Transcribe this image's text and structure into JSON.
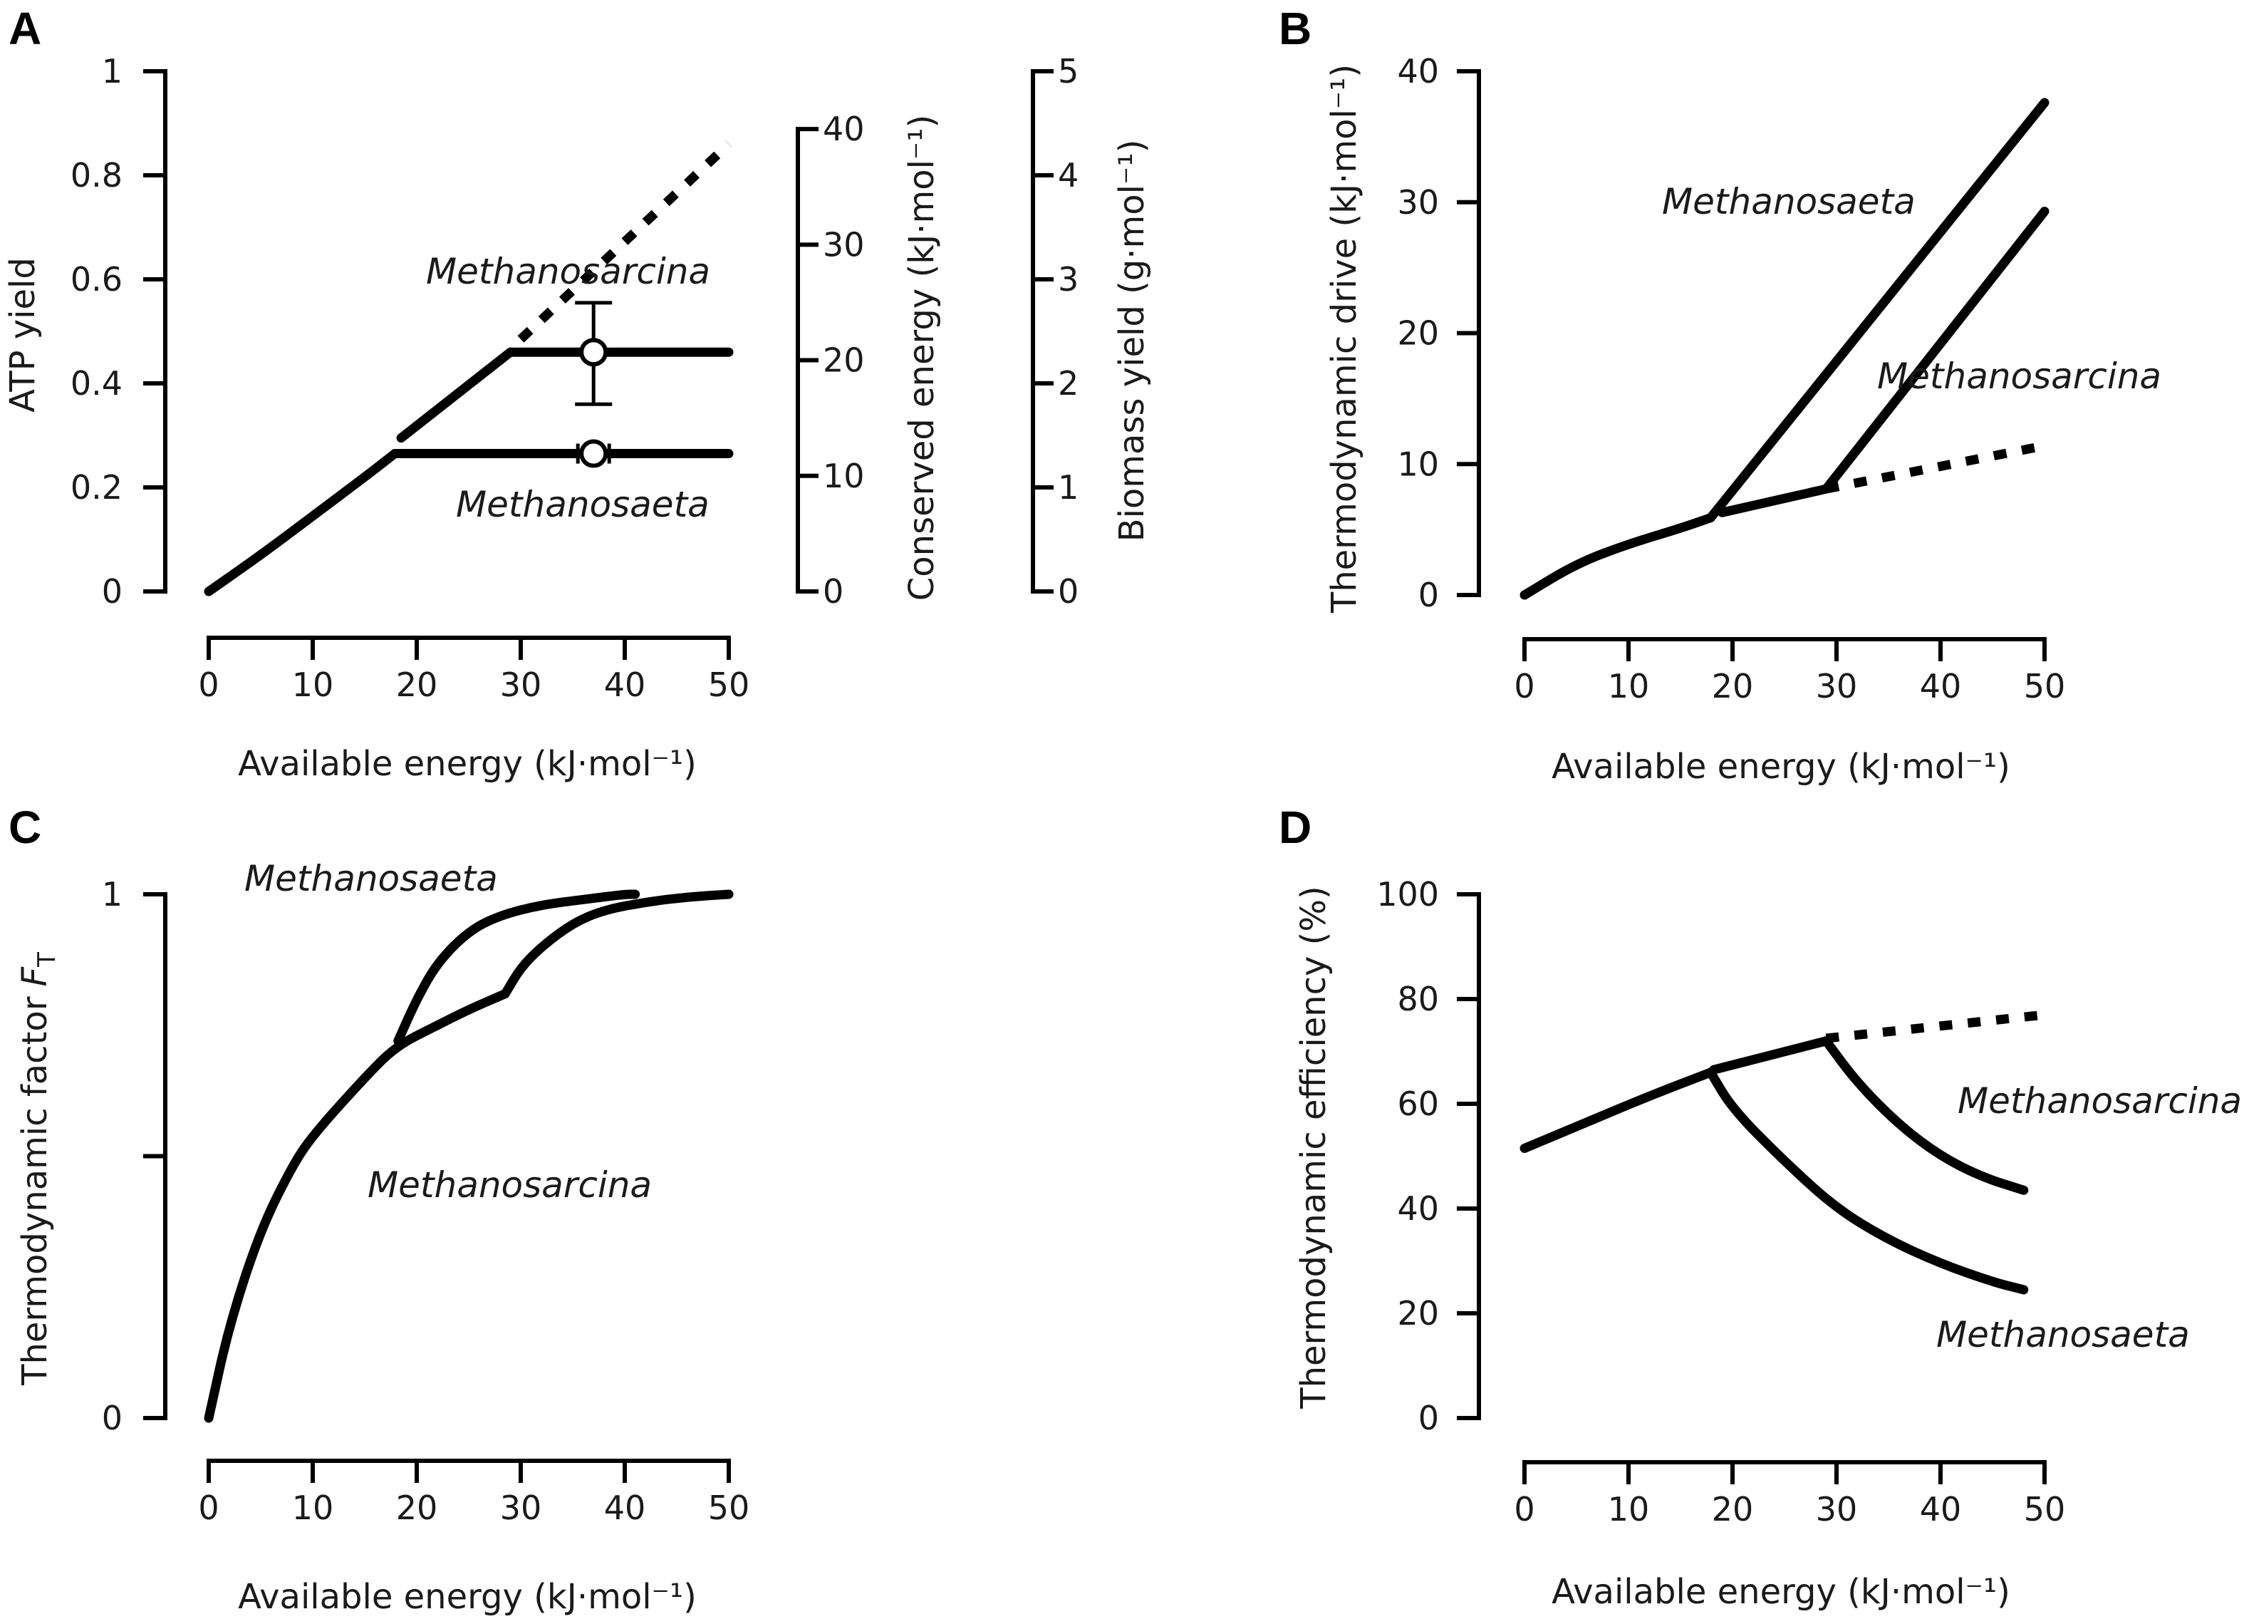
{
  "panels": {
    "A": {
      "letter": "A",
      "xlabel": "Available energy (kJ·mol⁻¹)",
      "ylabel": "ATP yield",
      "ylabel2": "Conserved energy (kJ·mol⁻¹)",
      "ylabel3": "Biomass yield (g·mol⁻¹)",
      "xticks": [
        "0",
        "10",
        "20",
        "30",
        "40",
        "50"
      ],
      "yticks": [
        "0",
        "0.2",
        "0.4",
        "0.6",
        "0.8",
        "1"
      ],
      "y2ticks": [
        "0",
        "10",
        "20",
        "30",
        "40"
      ],
      "y3ticks": [
        "0",
        "1",
        "2",
        "3",
        "4",
        "5"
      ],
      "label_sarcina": "Methanosarcina",
      "label_saeta": "Methanosaeta"
    },
    "B": {
      "letter": "B",
      "xlabel": "Available energy (kJ·mol⁻¹)",
      "ylabel": "Thermodynamic drive (kJ·mol⁻¹)",
      "xticks": [
        "0",
        "10",
        "20",
        "30",
        "40",
        "50"
      ],
      "yticks": [
        "0",
        "10",
        "20",
        "30",
        "40"
      ],
      "label_saeta": "Methanosaeta",
      "label_sarcina": "Methanosarcina"
    },
    "C": {
      "letter": "C",
      "xlabel": "Available energy (kJ·mol⁻¹)",
      "ylabel": "Thermodynamic factor",
      "ylabel_symbol": "F",
      "ylabel_subscript": "T",
      "xticks": [
        "0",
        "10",
        "20",
        "30",
        "40",
        "50"
      ],
      "yticks": [
        "0",
        "1"
      ],
      "label_saeta": "Methanosaeta",
      "label_sarcina": "Methanosarcina"
    },
    "D": {
      "letter": "D",
      "xlabel": "Available energy (kJ·mol⁻¹)",
      "ylabel": "Thermodynamic efficiency (%)",
      "xticks": [
        "0",
        "10",
        "20",
        "30",
        "40",
        "50"
      ],
      "yticks": [
        "0",
        "20",
        "40",
        "60",
        "80",
        "100"
      ],
      "label_sarcina": "Methanosarcina",
      "label_saeta": "Methanosaeta"
    }
  },
  "chart_data": [
    {
      "panel": "A",
      "type": "line",
      "xlabel": "Available energy (kJ·mol⁻¹)",
      "ylabel": "ATP yield",
      "xlim": [
        0,
        50
      ],
      "ylim": [
        0,
        1
      ],
      "secondary_axes": [
        {
          "label": "Conserved energy (kJ·mol⁻¹)",
          "range": [
            0,
            40
          ]
        },
        {
          "label": "Biomass yield (g·mol⁻¹)",
          "range": [
            0,
            5
          ]
        }
      ],
      "series": [
        {
          "name": "Shared (linear rise)",
          "style": "solid",
          "x": [
            0,
            5,
            10,
            15,
            17.9
          ],
          "y": [
            0,
            0.07,
            0.145,
            0.22,
            0.265
          ]
        },
        {
          "name": "Methanosaeta",
          "style": "solid",
          "x": [
            17.9,
            50
          ],
          "y": [
            0.265,
            0.265
          ]
        },
        {
          "name": "Methanosarcina rise",
          "style": "solid",
          "x": [
            18.5,
            29
          ],
          "y": [
            0.295,
            0.46
          ]
        },
        {
          "name": "Methanosarcina",
          "style": "solid",
          "x": [
            29,
            50
          ],
          "y": [
            0.46,
            0.46
          ]
        },
        {
          "name": "Methanosarcina (extrapolated)",
          "style": "dotted",
          "x": [
            30,
            50
          ],
          "y": [
            0.485,
            0.86
          ]
        }
      ],
      "points": [
        {
          "name": "Methanosarcina observed",
          "x": 37,
          "y": 0.46,
          "err_low": 0.36,
          "err_high": 0.555
        },
        {
          "name": "Methanosaeta observed",
          "x": 37,
          "y": 0.265,
          "err_low": 0.255,
          "err_high": 0.275
        }
      ]
    },
    {
      "panel": "B",
      "type": "line",
      "xlabel": "Available energy (kJ·mol⁻¹)",
      "ylabel": "Thermodynamic drive (kJ·mol⁻¹)",
      "xlim": [
        0,
        50
      ],
      "ylim": [
        0,
        40
      ],
      "series": [
        {
          "name": "Shared",
          "style": "solid",
          "x": [
            0,
            5,
            10,
            15,
            17.9
          ],
          "y": [
            0,
            2.4,
            3.9,
            5.1,
            5.9
          ]
        },
        {
          "name": "Methanosaeta",
          "style": "solid",
          "x": [
            17.9,
            50
          ],
          "y": [
            5.9,
            37.6
          ]
        },
        {
          "name": "Methanosarcina lower branch",
          "style": "solid",
          "x": [
            19,
            29
          ],
          "y": [
            6.3,
            8.1
          ]
        },
        {
          "name": "Methanosarcina",
          "style": "solid",
          "x": [
            29,
            50
          ],
          "y": [
            8.1,
            29.3
          ]
        },
        {
          "name": "Methanosarcina (extrapolated)",
          "style": "dotted",
          "x": [
            29,
            50
          ],
          "y": [
            8.1,
            11.4
          ]
        }
      ]
    },
    {
      "panel": "C",
      "type": "line",
      "xlabel": "Available energy (kJ·mol⁻¹)",
      "ylabel": "Thermodynamic factor F_T",
      "xlim": [
        0,
        50
      ],
      "ylim": [
        0,
        1
      ],
      "series": [
        {
          "name": "Shared",
          "style": "solid",
          "x": [
            0,
            2,
            5,
            8,
            10,
            15,
            18,
            22,
            25,
            28.5
          ],
          "y": [
            0,
            0.18,
            0.36,
            0.48,
            0.54,
            0.65,
            0.71,
            0.75,
            0.78,
            0.81
          ]
        },
        {
          "name": "Methanosaeta",
          "style": "solid",
          "x": [
            18.2,
            20,
            22,
            25,
            28,
            32,
            36,
            40,
            41
          ],
          "y": [
            0.72,
            0.8,
            0.87,
            0.93,
            0.96,
            0.98,
            0.99,
            1.0,
            1.0
          ]
        },
        {
          "name": "Methanosarcina",
          "style": "solid",
          "x": [
            28.5,
            30,
            32,
            35,
            38,
            42,
            46,
            50
          ],
          "y": [
            0.81,
            0.86,
            0.9,
            0.945,
            0.97,
            0.985,
            0.995,
            1.0
          ]
        }
      ]
    },
    {
      "panel": "D",
      "type": "line",
      "xlabel": "Available energy (kJ·mol⁻¹)",
      "ylabel": "Thermodynamic efficiency (%)",
      "xlim": [
        0,
        50
      ],
      "ylim": [
        0,
        100
      ],
      "series": [
        {
          "name": "Shared",
          "style": "solid",
          "x": [
            0,
            6,
            12,
            17.9
          ],
          "y": [
            51.5,
            56.5,
            61.5,
            66
          ]
        },
        {
          "name": "Methanosaeta",
          "style": "solid",
          "x": [
            17.9,
            20,
            25,
            30,
            35,
            40,
            45,
            48
          ],
          "y": [
            66,
            59,
            49,
            40,
            34,
            29.5,
            26,
            24.5
          ]
        },
        {
          "name": "Methanosarcina rise",
          "style": "solid",
          "x": [
            18.2,
            29
          ],
          "y": [
            66.5,
            72
          ]
        },
        {
          "name": "Methanosarcina",
          "style": "solid",
          "x": [
            29,
            32,
            36,
            40,
            44,
            48
          ],
          "y": [
            72,
            64,
            56,
            50,
            46,
            43.5
          ]
        },
        {
          "name": "Methanosarcina (extrapolated)",
          "style": "dotted",
          "x": [
            29,
            50
          ],
          "y": [
            72.5,
            77
          ]
        }
      ]
    }
  ]
}
